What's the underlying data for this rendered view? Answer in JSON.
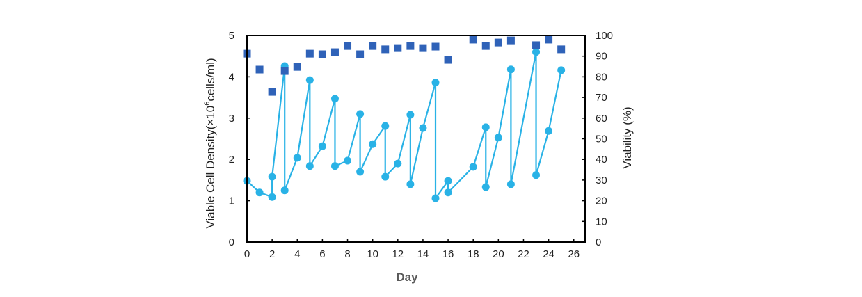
{
  "chart_data": {
    "type": "line",
    "title": "",
    "xlabel": "Day",
    "ylabel": "Viable Cell Density(×10⁶cells/ml)",
    "ylabel_parts": {
      "before": "Viable Cell Density(×10",
      "superscript": "6",
      "after": "cells/ml)"
    },
    "y2label": "Viability (%)",
    "xlim": [
      0,
      26.9
    ],
    "ylim": [
      0,
      5
    ],
    "y2lim": [
      0,
      100
    ],
    "x_ticks": [
      0,
      2,
      4,
      6,
      8,
      10,
      12,
      14,
      16,
      18,
      20,
      22,
      24,
      26
    ],
    "x_tick_labels": [
      "0",
      "2",
      "4",
      "6",
      "8",
      "10",
      "12",
      "14",
      "16",
      "18",
      "20",
      "22",
      "24",
      "26"
    ],
    "y_ticks": [
      0,
      1,
      2,
      3,
      4,
      5
    ],
    "y_tick_labels": [
      "0",
      "1",
      "2",
      "3",
      "4",
      "5"
    ],
    "y2_ticks": [
      0,
      10,
      20,
      30,
      40,
      50,
      60,
      70,
      80,
      90,
      100
    ],
    "y2_tick_labels": [
      "0",
      "10",
      "20",
      "30",
      "40",
      "50",
      "60",
      "70",
      "80",
      "90",
      "100"
    ],
    "grid": false,
    "legend": "none",
    "series": [
      {
        "name": "Viable Cell Density",
        "axis": "left",
        "style": "line-circle",
        "color": "#29B2E6",
        "x": [
          0,
          1,
          2,
          2,
          3,
          3,
          4,
          5,
          5,
          6,
          7,
          7,
          8,
          9,
          9,
          10,
          11,
          11,
          12,
          13,
          13,
          14,
          15,
          15,
          16,
          16,
          18,
          19,
          19,
          20,
          21,
          21,
          23,
          23,
          24,
          25
        ],
        "y": [
          1.48,
          1.2,
          1.09,
          1.58,
          4.26,
          1.25,
          2.04,
          3.92,
          1.84,
          2.32,
          3.47,
          1.84,
          1.97,
          3.1,
          1.7,
          2.37,
          2.81,
          1.58,
          1.9,
          3.08,
          1.4,
          2.76,
          3.86,
          1.06,
          1.48,
          1.2,
          1.82,
          2.78,
          1.33,
          2.53,
          4.18,
          1.4,
          4.6,
          1.62,
          2.69,
          4.16
        ]
      },
      {
        "name": "Viability",
        "axis": "right",
        "style": "square-marker",
        "color": "#2F62B8",
        "x": [
          0,
          1,
          2,
          3,
          4,
          5,
          6,
          7,
          8,
          9,
          10,
          11,
          12,
          13,
          14,
          15,
          16,
          18,
          19,
          20,
          21,
          23,
          24,
          25
        ],
        "y": [
          91.2,
          83.5,
          72.7,
          82.8,
          84.8,
          91.2,
          90.9,
          91.9,
          94.9,
          90.9,
          94.9,
          93.3,
          93.9,
          94.9,
          93.9,
          94.6,
          88.2,
          98.0,
          94.9,
          96.6,
          97.6,
          95.3,
          98.0,
          93.3
        ]
      }
    ]
  }
}
